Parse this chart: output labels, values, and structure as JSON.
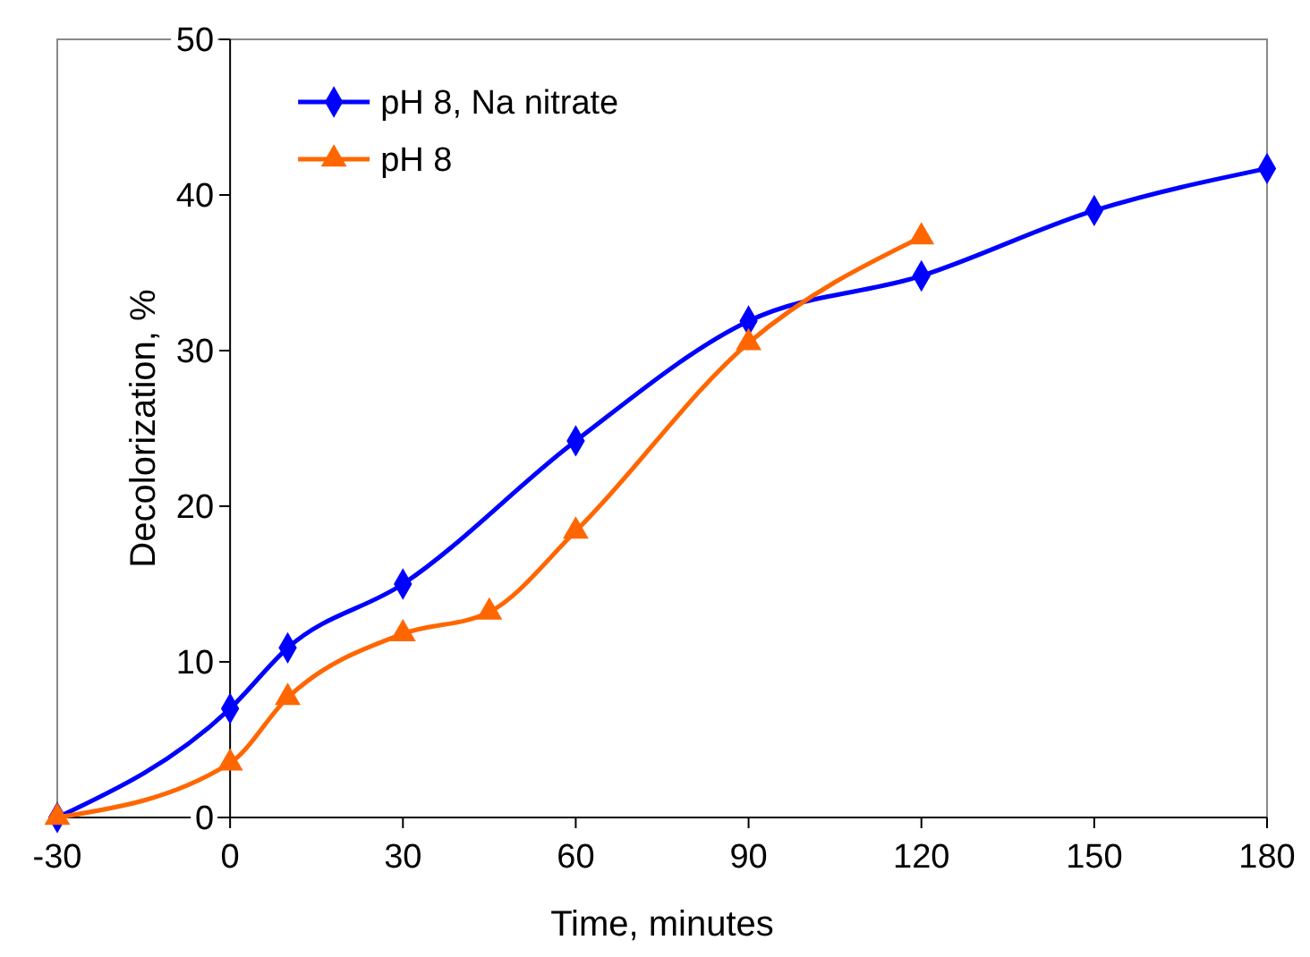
{
  "chart_data": {
    "type": "line",
    "xlabel": "Time, minutes",
    "ylabel": "Decolorization, %",
    "xlim": [
      -30,
      180
    ],
    "xticks": [
      -30,
      0,
      30,
      60,
      90,
      120,
      150,
      180
    ],
    "ylim": [
      0,
      50
    ],
    "yticks": [
      0,
      10,
      20,
      30,
      40,
      50
    ],
    "grid": false,
    "legend": "top left",
    "series": [
      {
        "name": "pH 8, Na nitrate",
        "color": "#0000ff",
        "marker": "diamond",
        "x": [
          -30,
          0,
          10,
          30,
          60,
          90,
          120,
          150,
          180
        ],
        "values": [
          0,
          7.0,
          10.9,
          15.0,
          24.2,
          31.9,
          34.8,
          39.0,
          41.7
        ]
      },
      {
        "name": "pH 8",
        "color": "#ff6600",
        "marker": "triangle",
        "x": [
          -30,
          0,
          10,
          30,
          45,
          60,
          90,
          120
        ],
        "values": [
          0,
          3.5,
          7.7,
          11.8,
          13.2,
          18.4,
          30.5,
          37.3
        ]
      }
    ]
  }
}
